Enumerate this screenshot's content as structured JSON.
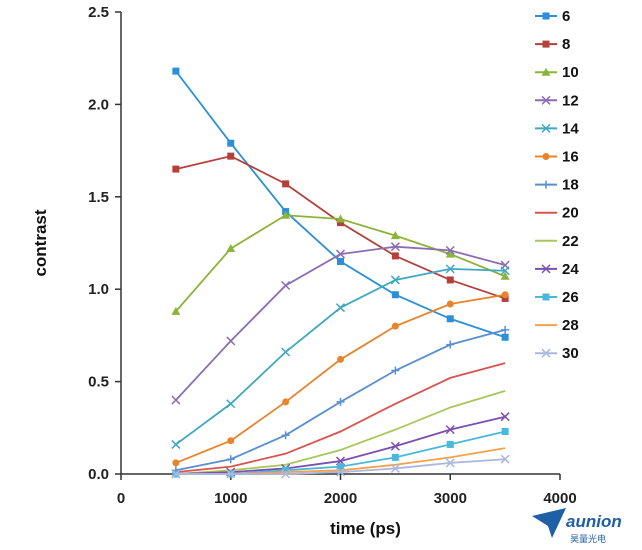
{
  "chart_data": {
    "type": "line",
    "title": "",
    "xlabel": "time (ps)",
    "ylabel": "contrast",
    "xlim": [
      0,
      4000
    ],
    "ylim": [
      0,
      2.5
    ],
    "xticks": [
      "0",
      "1000",
      "2000",
      "3000",
      "4000"
    ],
    "yticks": [
      "0.0",
      "0.5",
      "1.0",
      "1.5",
      "2.0",
      "2.5"
    ],
    "grid": false,
    "legend_placement": "right",
    "x": [
      500,
      1000,
      1500,
      2000,
      2500,
      3000,
      3500
    ],
    "series": [
      {
        "name": "6",
        "color": "#2b8fd9",
        "marker": "square",
        "values": [
          2.18,
          1.79,
          1.42,
          1.15,
          0.97,
          0.84,
          0.74
        ]
      },
      {
        "name": "8",
        "color": "#b5403b",
        "marker": "square",
        "values": [
          1.65,
          1.72,
          1.57,
          1.36,
          1.18,
          1.05,
          0.95
        ]
      },
      {
        "name": "10",
        "color": "#8cb33a",
        "marker": "triangle",
        "values": [
          0.88,
          1.22,
          1.4,
          1.38,
          1.29,
          1.19,
          1.07
        ]
      },
      {
        "name": "12",
        "color": "#8b6db3",
        "marker": "x",
        "values": [
          0.4,
          0.72,
          1.02,
          1.19,
          1.23,
          1.21,
          1.13
        ]
      },
      {
        "name": "14",
        "color": "#3fa8c0",
        "marker": "x",
        "values": [
          0.16,
          0.38,
          0.66,
          0.9,
          1.05,
          1.11,
          1.1
        ]
      },
      {
        "name": "16",
        "color": "#e8842c",
        "marker": "circle",
        "values": [
          0.06,
          0.18,
          0.39,
          0.62,
          0.8,
          0.92,
          0.97
        ]
      },
      {
        "name": "18",
        "color": "#5a8fd0",
        "marker": "plus",
        "values": [
          0.02,
          0.08,
          0.21,
          0.39,
          0.56,
          0.7,
          0.78
        ]
      },
      {
        "name": "20",
        "color": "#d9534f",
        "marker": "none",
        "values": [
          0.01,
          0.04,
          0.11,
          0.23,
          0.38,
          0.52,
          0.6
        ]
      },
      {
        "name": "22",
        "color": "#a8c85a",
        "marker": "none",
        "values": [
          0.0,
          0.02,
          0.05,
          0.13,
          0.24,
          0.36,
          0.45
        ]
      },
      {
        "name": "24",
        "color": "#7b4fb0",
        "marker": "x",
        "values": [
          0.0,
          0.01,
          0.03,
          0.07,
          0.15,
          0.24,
          0.31
        ]
      },
      {
        "name": "26",
        "color": "#4ab8d8",
        "marker": "square",
        "values": [
          0.0,
          0.0,
          0.02,
          0.04,
          0.09,
          0.16,
          0.23
        ]
      },
      {
        "name": "28",
        "color": "#f5a04a",
        "marker": "none",
        "values": [
          0.0,
          0.0,
          0.01,
          0.02,
          0.05,
          0.09,
          0.14
        ]
      },
      {
        "name": "30",
        "color": "#aab8e0",
        "marker": "x",
        "values": [
          0.0,
          0.0,
          0.0,
          0.01,
          0.03,
          0.06,
          0.08
        ]
      }
    ]
  },
  "brand": {
    "name": "aunion",
    "subtitle": "昊量光电",
    "icon": "paper-plane-logo-icon",
    "color": "#1f5fa8"
  }
}
